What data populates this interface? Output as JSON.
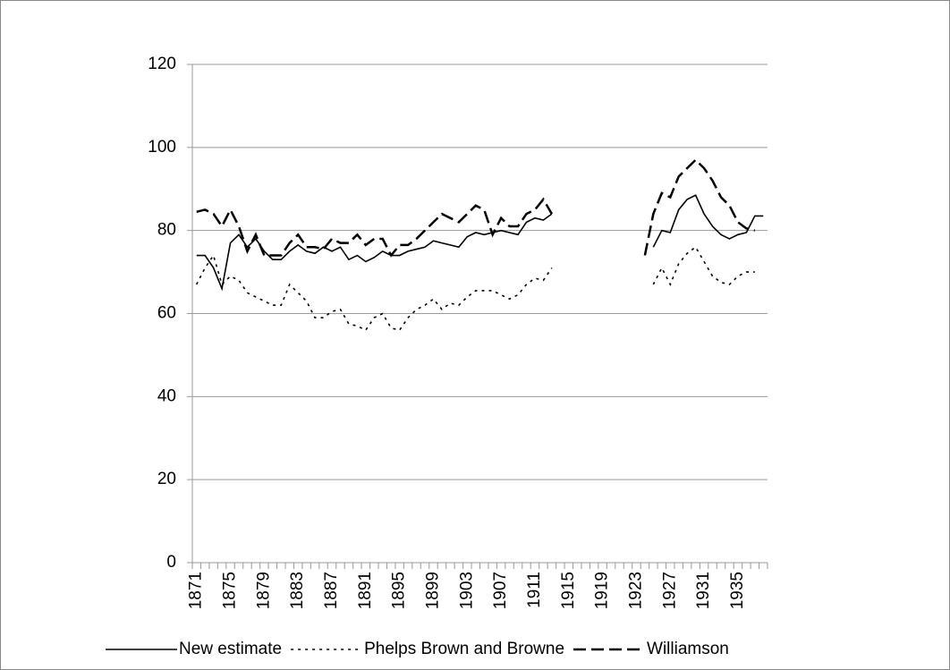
{
  "chart_data": {
    "type": "line",
    "categories": [
      "1871",
      null,
      null,
      null,
      "1875",
      null,
      null,
      null,
      "1879",
      null,
      null,
      null,
      "1883",
      null,
      null,
      null,
      "1887",
      null,
      null,
      null,
      "1891",
      null,
      null,
      null,
      "1895",
      null,
      null,
      null,
      "1899",
      null,
      null,
      null,
      "1903",
      null,
      null,
      null,
      "1907",
      null,
      null,
      null,
      "1911",
      null,
      null,
      null,
      "1915",
      null,
      null,
      null,
      "1919",
      null,
      null,
      null,
      "1923",
      null,
      null,
      null,
      "1927",
      null,
      null,
      null,
      "1931",
      null,
      null,
      null,
      "1935",
      null,
      null,
      null
    ],
    "series": [
      {
        "name": "New estimate",
        "color": "#000000",
        "dash": "solid",
        "values": [
          74,
          74,
          71,
          66,
          77,
          79,
          76,
          78,
          75,
          73,
          73,
          75,
          76.5,
          75,
          74.5,
          76,
          75,
          76,
          73,
          74,
          72.5,
          73.5,
          75,
          74,
          74,
          75,
          75.5,
          76,
          77.5,
          77,
          76.5,
          76,
          78.5,
          79.5,
          79,
          79.5,
          80,
          79.5,
          79,
          82,
          83,
          82.5,
          84,
          null,
          null,
          null,
          null,
          null,
          null,
          null,
          null,
          null,
          null,
          null,
          76,
          80,
          79.5,
          85,
          87.5,
          88.5,
          84,
          81,
          79,
          78,
          79,
          79.5,
          83.5,
          83.5
        ]
      },
      {
        "name": "Phelps Brown and Browne",
        "color": "#000000",
        "dash": "dotted",
        "values": [
          67,
          71,
          74,
          67,
          69,
          68,
          65,
          64,
          63,
          62,
          62,
          67,
          65,
          63,
          59,
          59,
          60.5,
          61,
          57.5,
          57,
          56,
          59,
          60,
          56.5,
          56,
          59,
          61,
          62,
          63.5,
          61,
          62.5,
          62,
          64,
          65.5,
          65.5,
          65.5,
          64.5,
          63.5,
          64.5,
          67,
          68.5,
          68,
          71,
          null,
          null,
          null,
          null,
          null,
          null,
          null,
          null,
          null,
          null,
          null,
          67,
          71,
          67,
          72,
          74.5,
          76,
          72.5,
          69,
          67.5,
          67,
          69,
          70,
          70,
          null
        ]
      },
      {
        "name": "Williamson",
        "color": "#000000",
        "dash": "dashed",
        "values": [
          84.5,
          85,
          84,
          81,
          85,
          81,
          75,
          79,
          74,
          74,
          74,
          77,
          79,
          76,
          76,
          75.5,
          78,
          77,
          77,
          79,
          76.5,
          78,
          78,
          74,
          76.5,
          76.5,
          78,
          80,
          82,
          84,
          83,
          82,
          84,
          86,
          85,
          79,
          83,
          81,
          81,
          84,
          85,
          87.5,
          84,
          null,
          null,
          null,
          null,
          null,
          null,
          null,
          null,
          null,
          null,
          74,
          84,
          89,
          88,
          93,
          95,
          97,
          95,
          92,
          88,
          86,
          82,
          80.5,
          80,
          null
        ]
      }
    ],
    "ylim": [
      0,
      120
    ],
    "yticks": [
      0,
      20,
      40,
      60,
      80,
      100,
      120
    ],
    "grid": true,
    "legend": "bottom"
  }
}
